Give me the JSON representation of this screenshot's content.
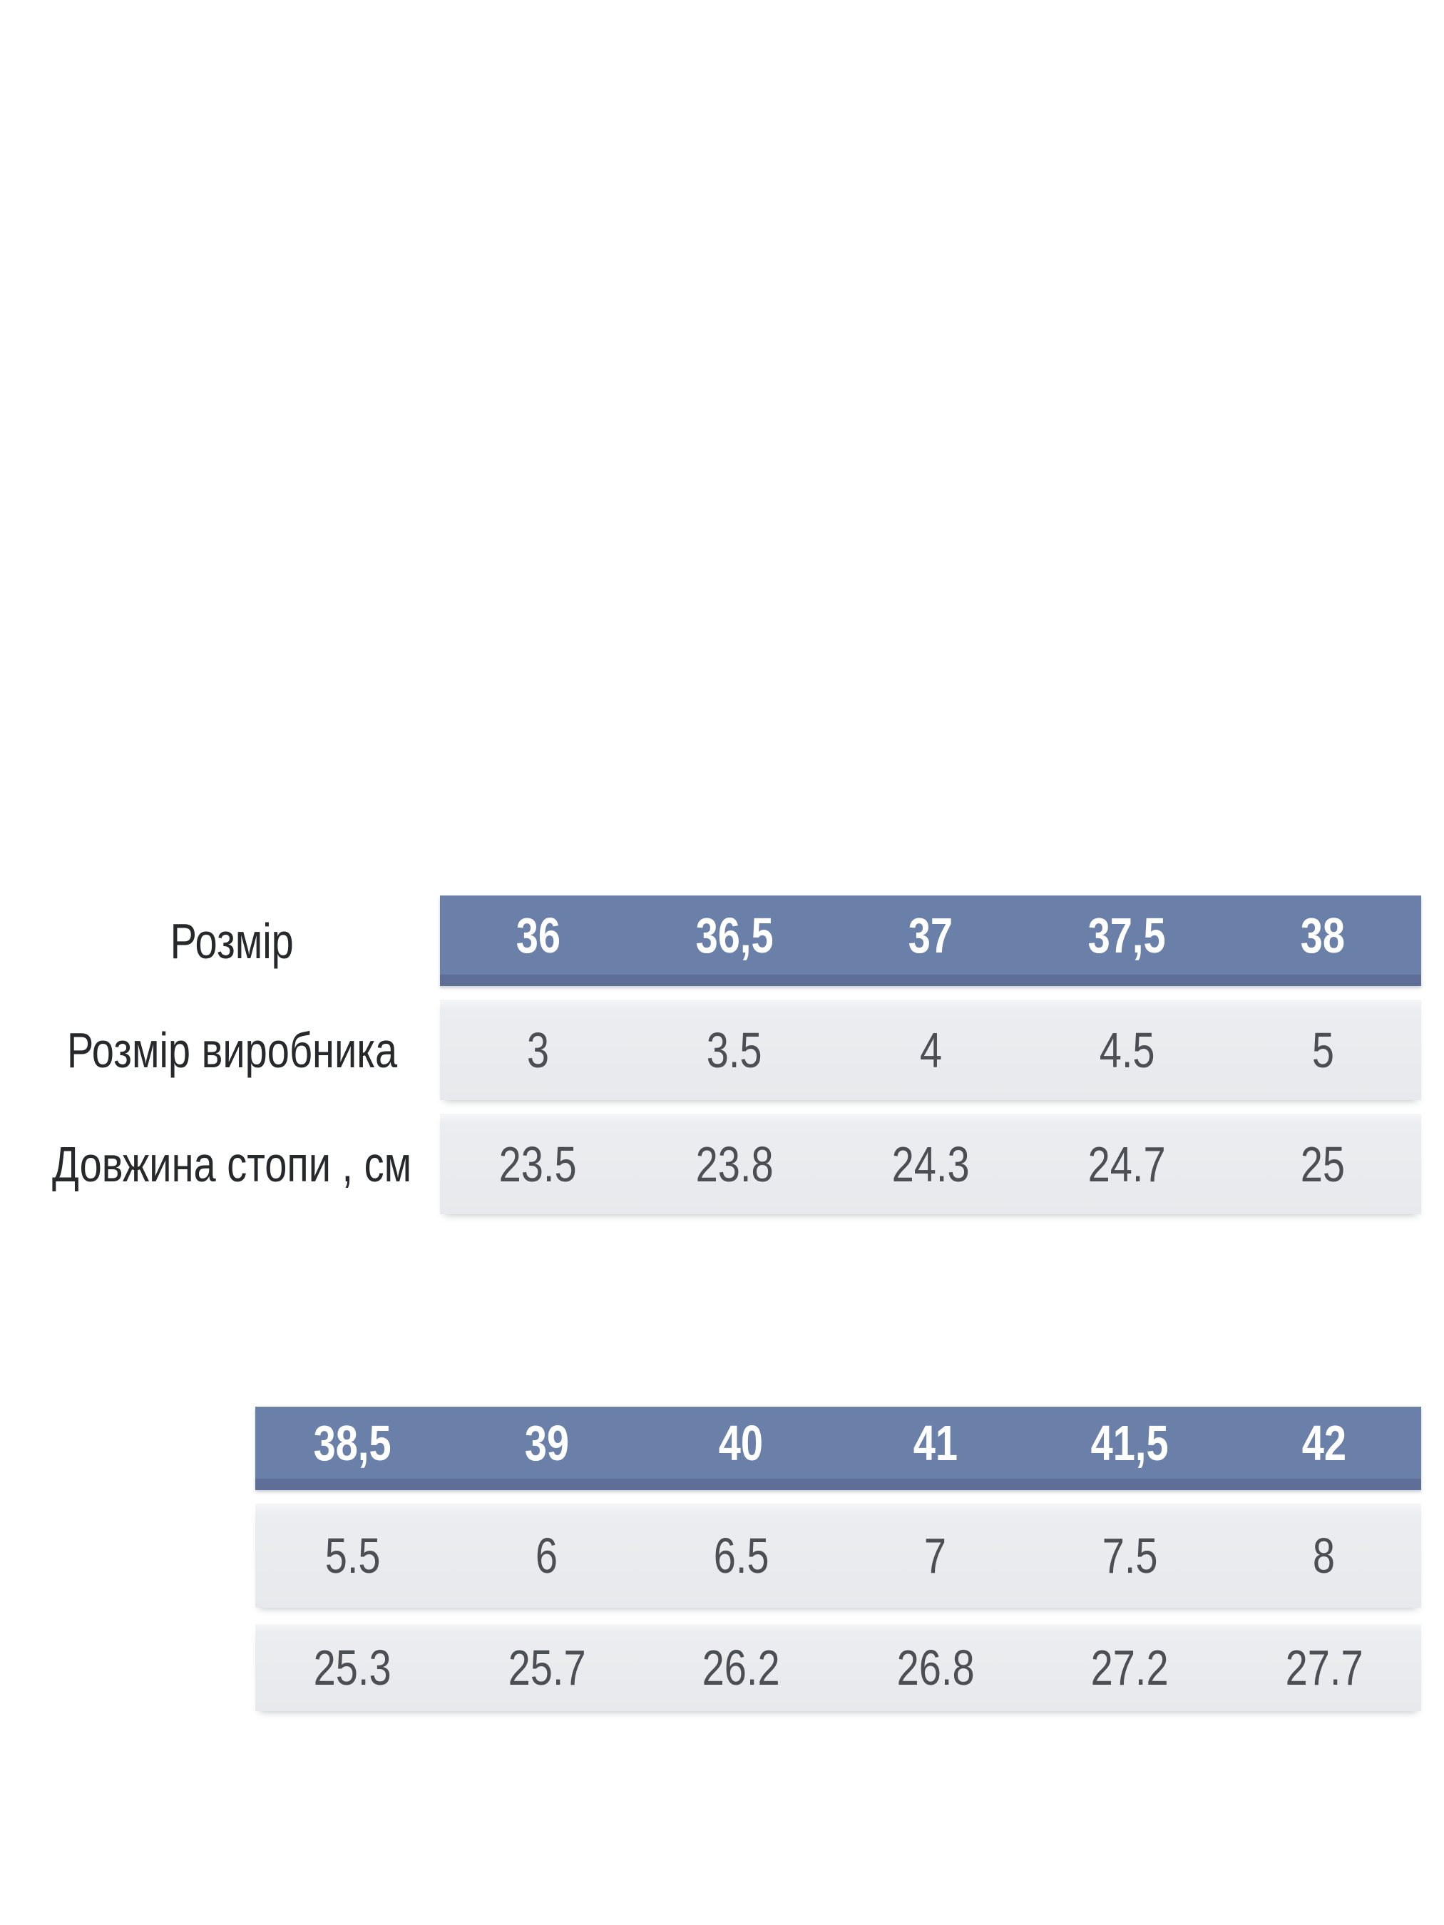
{
  "colors": {
    "header_blue": "#6b80a9",
    "header_blue_dark": "#5e6e96",
    "row_gray": "#e9ebee",
    "header_text": "#ffffff",
    "body_text": "#4b4e53",
    "label_text": "#26282c",
    "page_bg": "#ffffff"
  },
  "size_chart": {
    "row_labels": [
      "Розмір",
      "Розмір виробника",
      "Довжина стопи , см"
    ],
    "table1": {
      "sizes": [
        "36",
        "36,5",
        "37",
        "37,5",
        "38"
      ],
      "manufacturer_sizes": [
        "3",
        "3.5",
        "4",
        "4.5",
        "5"
      ],
      "foot_length_cm": [
        "23.5",
        "23.8",
        "24.3",
        "24.7",
        "25"
      ]
    },
    "table2": {
      "sizes": [
        "38,5",
        "39",
        "40",
        "41",
        "41,5",
        "42"
      ],
      "manufacturer_sizes": [
        "5.5",
        "6",
        "6.5",
        "7",
        "7.5",
        "8"
      ],
      "foot_length_cm": [
        "25.3",
        "25.7",
        "26.2",
        "26.8",
        "27.2",
        "27.7"
      ]
    }
  }
}
